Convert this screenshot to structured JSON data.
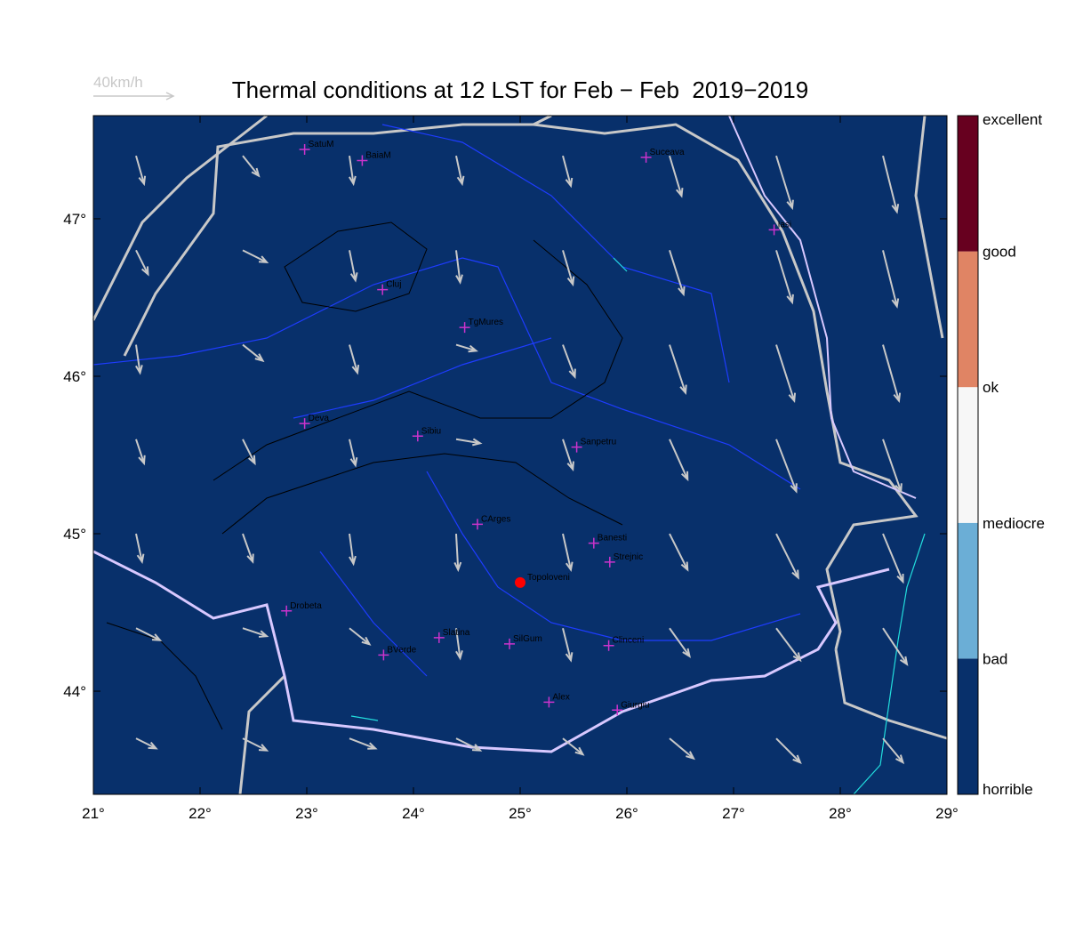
{
  "chart_data": {
    "type": "vector-map",
    "title": "Thermal conditions at 12 LST for Feb − Feb  2019−2019",
    "ref_label": "40km/h",
    "ref_speed": 40,
    "xlim": [
      21,
      29
    ],
    "ylim": [
      43.345,
      47.655
    ],
    "xticks": [
      {
        "value": 21,
        "label": "21°"
      },
      {
        "value": 22,
        "label": "22°"
      },
      {
        "value": 23,
        "label": "23°"
      },
      {
        "value": 24,
        "label": "24°"
      },
      {
        "value": 25,
        "label": "25°"
      },
      {
        "value": 26,
        "label": "26°"
      },
      {
        "value": 27,
        "label": "27°"
      },
      {
        "value": 28,
        "label": "28°"
      },
      {
        "value": 29,
        "label": "29°"
      }
    ],
    "yticks": [
      {
        "value": 44,
        "label": "44°"
      },
      {
        "value": 45,
        "label": "45°"
      },
      {
        "value": 46,
        "label": "46°"
      },
      {
        "value": 47,
        "label": "47°"
      }
    ],
    "background": "#08306b",
    "colorbar": {
      "labels": [
        "horrible",
        "bad",
        "mediocre",
        "ok",
        "good",
        "excellent"
      ],
      "colors": [
        "#08306b",
        "#6baed6",
        "#f7f7f7",
        "#e08464",
        "#67001f"
      ]
    },
    "cities": [
      {
        "name": "SatuM",
        "lon": 22.98,
        "lat": 47.44
      },
      {
        "name": "BaiaM",
        "lon": 23.52,
        "lat": 47.37
      },
      {
        "name": "Suceava",
        "lon": 26.18,
        "lat": 47.39
      },
      {
        "name": "Iasi",
        "lon": 27.38,
        "lat": 46.93
      },
      {
        "name": "Cluj",
        "lon": 23.71,
        "lat": 46.55
      },
      {
        "name": "TgMures",
        "lon": 24.48,
        "lat": 46.31
      },
      {
        "name": "Deva",
        "lon": 22.98,
        "lat": 45.7
      },
      {
        "name": "Sibiu",
        "lon": 24.04,
        "lat": 45.62
      },
      {
        "name": "Sanpetru",
        "lon": 25.53,
        "lat": 45.55
      },
      {
        "name": "CArges",
        "lon": 24.6,
        "lat": 45.06
      },
      {
        "name": "Banesti",
        "lon": 25.69,
        "lat": 44.94
      },
      {
        "name": "Strejnic",
        "lon": 25.84,
        "lat": 44.82
      },
      {
        "name": "Drobeta",
        "lon": 22.81,
        "lat": 44.51
      },
      {
        "name": "Slatina",
        "lon": 24.24,
        "lat": 44.34
      },
      {
        "name": "SilGum",
        "lon": 24.9,
        "lat": 44.3
      },
      {
        "name": "BVerde",
        "lon": 23.72,
        "lat": 44.23
      },
      {
        "name": "Clinceni",
        "lon": 25.83,
        "lat": 44.29
      },
      {
        "name": "Alex",
        "lon": 25.27,
        "lat": 43.93
      },
      {
        "name": "Giurgiu",
        "lon": 25.91,
        "lat": 43.88
      }
    ],
    "site": {
      "name": "Topoloveni",
      "lon": 25.0,
      "lat": 44.69,
      "color": "#ff0000"
    },
    "city_color": "#cc33cc",
    "arrow_color": "#c8c8c8",
    "winds": [
      [
        21.4,
        47.4,
        4,
        -14
      ],
      [
        22.4,
        47.4,
        8,
        -10
      ],
      [
        23.4,
        47.4,
        2,
        -14
      ],
      [
        24.4,
        47.4,
        3,
        -14
      ],
      [
        25.4,
        47.4,
        4,
        -15
      ],
      [
        26.4,
        47.4,
        6,
        -20
      ],
      [
        27.4,
        47.4,
        8,
        -26
      ],
      [
        28.4,
        47.4,
        7,
        -28
      ],
      [
        21.4,
        46.8,
        6,
        -12
      ],
      [
        22.4,
        46.8,
        12,
        -6
      ],
      [
        23.4,
        46.8,
        3,
        -15
      ],
      [
        24.4,
        46.8,
        2,
        -16
      ],
      [
        25.4,
        46.8,
        5,
        -17
      ],
      [
        26.4,
        46.8,
        7,
        -22
      ],
      [
        27.4,
        46.8,
        8,
        -26
      ],
      [
        28.4,
        46.8,
        7,
        -28
      ],
      [
        21.4,
        46.2,
        2,
        -14
      ],
      [
        22.4,
        46.2,
        10,
        -8
      ],
      [
        23.4,
        46.2,
        4,
        -14
      ],
      [
        24.4,
        46.2,
        10,
        -3
      ],
      [
        25.4,
        46.2,
        6,
        -16
      ],
      [
        26.4,
        46.2,
        8,
        -24
      ],
      [
        27.4,
        46.2,
        9,
        -28
      ],
      [
        28.4,
        46.2,
        8,
        -28
      ],
      [
        21.4,
        45.6,
        4,
        -12
      ],
      [
        22.4,
        45.6,
        6,
        -12
      ],
      [
        23.4,
        45.6,
        3,
        -13
      ],
      [
        24.4,
        45.6,
        12,
        -2
      ],
      [
        25.4,
        45.6,
        5,
        -15
      ],
      [
        26.4,
        45.6,
        9,
        -20
      ],
      [
        27.4,
        45.6,
        10,
        -26
      ],
      [
        28.4,
        45.6,
        9,
        -26
      ],
      [
        21.4,
        45.0,
        3,
        -14
      ],
      [
        22.4,
        45.0,
        5,
        -14
      ],
      [
        23.4,
        45.0,
        2,
        -15
      ],
      [
        24.4,
        45.0,
        1,
        -18
      ],
      [
        25.4,
        45.0,
        4,
        -18
      ],
      [
        26.4,
        45.0,
        9,
        -18
      ],
      [
        27.4,
        45.0,
        11,
        -22
      ],
      [
        28.4,
        45.0,
        10,
        -24
      ],
      [
        21.4,
        44.4,
        12,
        -6
      ],
      [
        22.4,
        44.4,
        12,
        -4
      ],
      [
        23.4,
        44.4,
        10,
        -8
      ],
      [
        24.4,
        44.4,
        2,
        -15
      ],
      [
        25.4,
        44.4,
        4,
        -16
      ],
      [
        26.4,
        44.4,
        10,
        -14
      ],
      [
        27.4,
        44.4,
        12,
        -16
      ],
      [
        28.4,
        44.4,
        12,
        -18
      ],
      [
        21.4,
        43.7,
        10,
        -5
      ],
      [
        22.4,
        43.7,
        12,
        -6
      ],
      [
        23.4,
        43.7,
        13,
        -5
      ],
      [
        24.4,
        43.7,
        12,
        -6
      ],
      [
        25.4,
        43.7,
        10,
        -8
      ],
      [
        26.4,
        43.7,
        12,
        -10
      ],
      [
        27.4,
        43.7,
        12,
        -12
      ],
      [
        28.4,
        43.7,
        10,
        -12
      ]
    ]
  }
}
